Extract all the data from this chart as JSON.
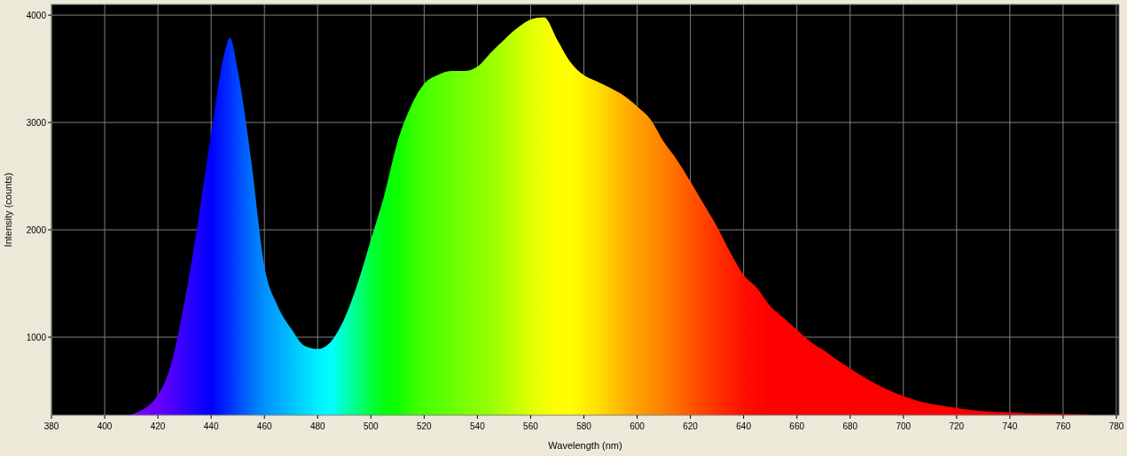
{
  "chart_data": {
    "type": "area",
    "xlabel": "Wavelength (nm)",
    "ylabel": "Intensity (counts)",
    "x": [
      410,
      420,
      425,
      430,
      435,
      440,
      445,
      447,
      450,
      455,
      460,
      465,
      470,
      475,
      480,
      485,
      490,
      495,
      500,
      505,
      510,
      515,
      520,
      525,
      530,
      535,
      540,
      545,
      550,
      555,
      560,
      565,
      570,
      575,
      580,
      585,
      590,
      595,
      600,
      605,
      610,
      615,
      620,
      625,
      630,
      635,
      640,
      645,
      650,
      655,
      660,
      665,
      670,
      675,
      680,
      685,
      690,
      695,
      700,
      705,
      710,
      715,
      720,
      730,
      740,
      750,
      760,
      770
    ],
    "values": [
      280,
      460,
      750,
      1330,
      2070,
      2900,
      3650,
      3790,
      3480,
      2650,
      1660,
      1290,
      1080,
      920,
      890,
      960,
      1170,
      1500,
      1910,
      2320,
      2820,
      3150,
      3360,
      3440,
      3480,
      3480,
      3520,
      3650,
      3770,
      3880,
      3960,
      3980,
      3770,
      3560,
      3440,
      3380,
      3320,
      3250,
      3150,
      3030,
      2820,
      2650,
      2450,
      2240,
      2030,
      1790,
      1580,
      1460,
      1290,
      1180,
      1070,
      960,
      880,
      790,
      710,
      630,
      560,
      500,
      450,
      410,
      380,
      360,
      340,
      310,
      300,
      290,
      285,
      280
    ],
    "colors": [
      "#8000ff",
      "#6600ff",
      "#5000ff",
      "#3300ff",
      "#1a00ff",
      "#0000ff",
      "#0020ff",
      "#0030ff",
      "#0048ff",
      "#0070ff",
      "#0090ff",
      "#00a8ff",
      "#00c0ff",
      "#00d8ff",
      "#00f0ff",
      "#00ffff",
      "#00ffc0",
      "#00ff80",
      "#00ff40",
      "#00ff10",
      "#10ff00",
      "#30ff00",
      "#48ff00",
      "#58ff00",
      "#68ff00",
      "#78ff00",
      "#88ff00",
      "#98ff00",
      "#b0ff00",
      "#c8ff00",
      "#e0ff00",
      "#f0ff00",
      "#ffff00",
      "#ffff00",
      "#fff000",
      "#ffe000",
      "#ffc800",
      "#ffb400",
      "#ffa000",
      "#ff9000",
      "#ff8000",
      "#ff6c00",
      "#ff5800",
      "#ff4400",
      "#ff3000",
      "#ff2000",
      "#ff1000",
      "#ff0800",
      "#ff0000",
      "#ff0000",
      "#ff0000",
      "#ff0000",
      "#ff0000",
      "#ff0000",
      "#ff0000",
      "#ff0000",
      "#ff0000",
      "#ff0000",
      "#ff0000",
      "#ff0000",
      "#ff0000",
      "#ff0000",
      "#ff0000",
      "#f00000",
      "#e00000",
      "#d00000",
      "#c00000",
      "#b00000"
    ],
    "xlim": [
      380,
      781
    ],
    "ylim": [
      273,
      4100
    ],
    "xticks": [
      380,
      400,
      420,
      440,
      460,
      480,
      500,
      520,
      540,
      560,
      580,
      600,
      620,
      640,
      660,
      680,
      700,
      720,
      740,
      760,
      780
    ],
    "yticks": [
      1000,
      2000,
      3000,
      4000
    ],
    "grid": true
  }
}
